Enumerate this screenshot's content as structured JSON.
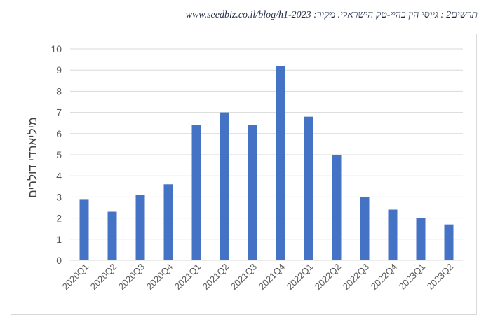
{
  "caption": "תרשים2 : גיוסי הון בהיי-טק הישראלי. מקור: www.seedbiz.co.il/blog/h1-2023",
  "chart_data": {
    "type": "bar",
    "categories": [
      "2020Q1",
      "2020Q2",
      "2020Q3",
      "2020Q4",
      "2021Q1",
      "2021Q2",
      "2021Q3",
      "2021Q4",
      "2022Q1",
      "2022Q2",
      "2022Q3",
      "2022Q4",
      "2023Q1",
      "2023Q2"
    ],
    "values": [
      2.9,
      2.3,
      3.1,
      3.6,
      6.4,
      7.0,
      6.4,
      9.2,
      6.8,
      5.0,
      3.0,
      2.4,
      2.0,
      1.7
    ],
    "title": "",
    "xlabel": "",
    "ylabel": "מיליארדי דולרים",
    "ylim": [
      0,
      10
    ],
    "yticks": [
      0,
      1,
      2,
      3,
      4,
      5,
      6,
      7,
      8,
      9,
      10
    ],
    "grid": true,
    "bar_color": "#4472c4",
    "grid_color": "#d9d9d9",
    "text_color": "#595959"
  }
}
